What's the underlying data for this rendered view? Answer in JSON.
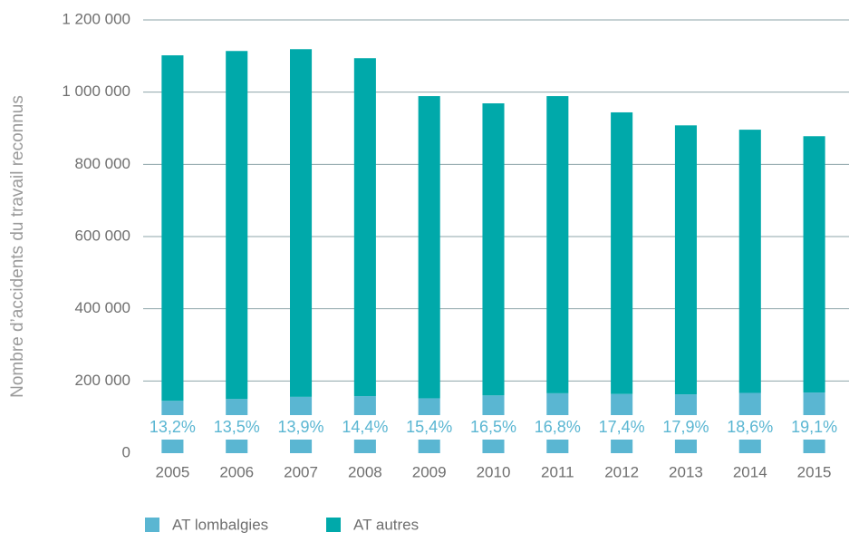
{
  "chart_data": {
    "type": "stacked_bar",
    "y_axis_label": "Nombre d’accidents du travail reconnus",
    "categories": [
      "2005",
      "2006",
      "2007",
      "2008",
      "2009",
      "2010",
      "2011",
      "2012",
      "2013",
      "2014",
      "2015"
    ],
    "series": [
      {
        "name": "AT lombalgies",
        "color": "#5ab6d2",
        "values": [
          145000,
          150000,
          156000,
          158000,
          152000,
          160000,
          166000,
          164000,
          163000,
          167000,
          168000
        ]
      },
      {
        "name": "AT autres",
        "color": "#00a9aa",
        "values": [
          957000,
          964000,
          963000,
          936000,
          837000,
          809000,
          823000,
          780000,
          745000,
          729000,
          710000
        ]
      }
    ],
    "share_labels": [
      "13,2%",
      "13,5%",
      "13,9%",
      "14,4%",
      "15,4%",
      "16,5%",
      "16,8%",
      "17,4%",
      "17,9%",
      "18,6%",
      "19,1%"
    ],
    "ylim": [
      0,
      1200000
    ],
    "yticks": [
      0,
      {
        "value": 200000,
        "label": "200 000"
      },
      {
        "value": 400000,
        "label": "400 000"
      },
      {
        "value": 600000,
        "label": "600 000"
      },
      {
        "value": 800000,
        "label": "800 000"
      },
      {
        "value": 1000000,
        "label": "1 000 000"
      },
      {
        "value": 1200000,
        "label": "1 200 000"
      }
    ],
    "grid": true,
    "legend": "bottom"
  }
}
